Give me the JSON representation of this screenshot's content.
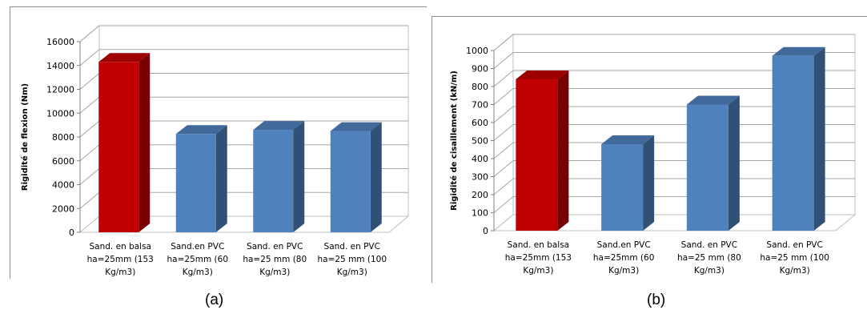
{
  "chart_data": [
    {
      "type": "bar",
      "three_d": true,
      "categories": [
        [
          "Sand. en balsa",
          "ha=25mm (153",
          "Kg/m3)"
        ],
        [
          "Sand.en PVC",
          "ha=25mm (60",
          "Kg/m3)"
        ],
        [
          "Sand. en PVC",
          "ha=25 mm (80",
          "Kg/m3)"
        ],
        [
          "Sand. en PVC",
          "ha=25 mm (100",
          "Kg/m3)"
        ]
      ],
      "values": [
        14300,
        8250,
        8600,
        8500
      ],
      "bar_colors": [
        "#c00000",
        "#4f81bd",
        "#4f81bd",
        "#4f81bd"
      ],
      "ylabel": "Rigidité de flexion (Nm)",
      "ylim": [
        0,
        16000
      ],
      "yticks": [
        0,
        2000,
        4000,
        6000,
        8000,
        10000,
        12000,
        14000,
        16000
      ],
      "grid": true,
      "caption": "(a)"
    },
    {
      "type": "bar",
      "three_d": true,
      "categories": [
        [
          "Sand. en balsa",
          "ha=25mm (153",
          "Kg/m3)"
        ],
        [
          "Sand.en PVC",
          "ha=25mm (60",
          "Kg/m3)"
        ],
        [
          "Sand. en PVC",
          "ha=25 mm (80",
          "Kg/m3)"
        ],
        [
          "Sand. en PVC",
          "ha=25 mm (100",
          "Kg/m3)"
        ]
      ],
      "values": [
        840,
        480,
        700,
        970
      ],
      "bar_colors": [
        "#c00000",
        "#4f81bd",
        "#4f81bd",
        "#4f81bd"
      ],
      "ylabel": "Rigidité de cisaillement (kN/m)",
      "ylim": [
        0,
        1000
      ],
      "yticks": [
        0,
        100,
        200,
        300,
        400,
        500,
        600,
        700,
        800,
        900,
        1000
      ],
      "grid": true,
      "caption": "(b)"
    }
  ]
}
